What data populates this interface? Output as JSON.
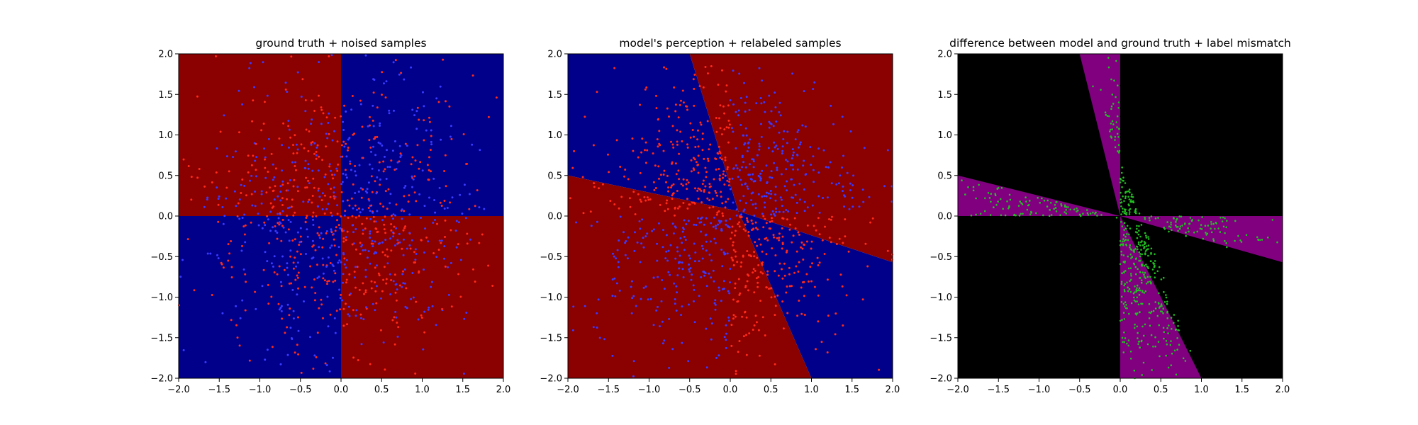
{
  "chart_data": [
    {
      "type": "scatter",
      "title": "ground truth + noised samples",
      "xlim": [
        -2,
        2
      ],
      "ylim": [
        -2,
        2
      ],
      "x_ticks": [
        "−2.0",
        "−1.5",
        "−1.0",
        "−0.5",
        "0.0",
        "0.5",
        "1.0",
        "1.5",
        "2.0"
      ],
      "y_ticks": [
        "2.0",
        "1.5",
        "1.0",
        "0.5",
        "0.0",
        "−0.5",
        "−1.0",
        "−1.5",
        "−2.0"
      ],
      "background": "axis-aligned quadrants: red for x<0,y>0 and x>0,y<0; blue otherwise",
      "region_colors": {
        "class_a": "#8b0000",
        "class_b": "#00008b"
      },
      "point_colors": {
        "class_a": "#ff2a1a",
        "class_b": "#3a3aff"
      },
      "approx_point_count": 1000,
      "grid": false
    },
    {
      "type": "scatter",
      "title": "model's perception + relabeled samples",
      "xlim": [
        -2,
        2
      ],
      "ylim": [
        -2,
        2
      ],
      "x_ticks": [
        "−2.0",
        "−1.5",
        "−1.0",
        "−0.5",
        "0.0",
        "0.5",
        "1.0",
        "1.5",
        "2.0"
      ],
      "y_ticks": [
        "2.0",
        "1.5",
        "1.0",
        "0.5",
        "0.0",
        "−0.5",
        "−1.0",
        "−1.5",
        "−2.0"
      ],
      "background": "quadrants rotated about the origin; boundaries through (-2,0.5)-(2,-0.57) and (-0.5,2)-(1,-2)",
      "boundary_lines": [
        {
          "from": [
            -2,
            0.5
          ],
          "to": [
            2,
            -0.57
          ]
        },
        {
          "from": [
            -0.5,
            2
          ],
          "to": [
            1,
            -2
          ]
        }
      ],
      "region_colors": {
        "class_a": "#8b0000",
        "class_b": "#00008b"
      },
      "point_colors": {
        "class_a": "#ff2a1a",
        "class_b": "#3a3aff"
      },
      "approx_point_count": 1000,
      "grid": false
    },
    {
      "type": "scatter",
      "title": "difference between model and ground truth + label mismatch",
      "xlim": [
        -2,
        2
      ],
      "ylim": [
        -2,
        2
      ],
      "x_ticks": [
        "−2.0",
        "−1.5",
        "−1.0",
        "−0.5",
        "0.0",
        "0.5",
        "1.0",
        "1.5",
        "2.0"
      ],
      "y_ticks": [
        "2.0",
        "1.5",
        "1.0",
        "0.5",
        "0.0",
        "−0.5",
        "−1.0",
        "−1.5",
        "−2.0"
      ],
      "background": "black where model agrees; purple wedges where model and ground truth differ",
      "mismatch_wedges": [
        {
          "vertices": [
            [
              0,
              0
            ],
            [
              -2,
              0
            ],
            [
              -2,
              0.5
            ]
          ]
        },
        {
          "vertices": [
            [
              0,
              0
            ],
            [
              2,
              0
            ],
            [
              2,
              -0.57
            ]
          ]
        },
        {
          "vertices": [
            [
              0,
              0
            ],
            [
              0,
              2
            ],
            [
              -0.5,
              2
            ]
          ]
        },
        {
          "vertices": [
            [
              0,
              0
            ],
            [
              0,
              -2
            ],
            [
              1,
              -2
            ]
          ]
        }
      ],
      "region_colors": {
        "agree": "#000000",
        "mismatch": "#800080"
      },
      "point_colors": {
        "mismatch_sample": "#22c022"
      },
      "approx_point_count": 600,
      "grid": false
    }
  ]
}
